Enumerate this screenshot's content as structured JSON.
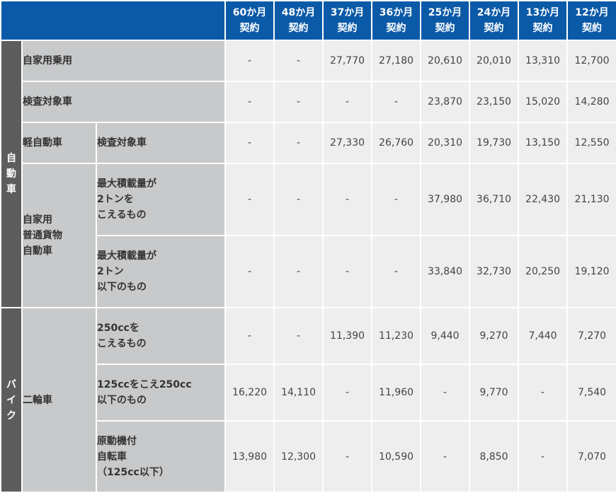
{
  "header": {
    "columns": [
      [
        "60か月",
        "契約"
      ],
      [
        "48か月",
        "契約"
      ],
      [
        "37か月",
        "契約"
      ],
      [
        "36か月",
        "契約"
      ],
      [
        "25か月",
        "契約"
      ],
      [
        "24か月",
        "契約"
      ],
      [
        "13か月",
        "契約"
      ],
      [
        "12か月",
        "契約"
      ]
    ]
  },
  "groups": {
    "car": "自動車",
    "bike": "バイク"
  },
  "rows": [
    {
      "label": [
        "自家用乗用"
      ],
      "values": [
        "-",
        "-",
        "27,770",
        "27,180",
        "20,610",
        "20,010",
        "13,310",
        "12,700"
      ]
    },
    {
      "label": [
        "検査対象車"
      ],
      "values": [
        "-",
        "-",
        "-",
        "-",
        "23,870",
        "23,150",
        "15,020",
        "14,280"
      ]
    },
    {
      "category": [
        "軽自動車"
      ],
      "label": [
        "検査対象車"
      ],
      "values": [
        "-",
        "-",
        "27,330",
        "26,760",
        "20,310",
        "19,730",
        "13,150",
        "12,550"
      ]
    },
    {
      "category": [
        "自家用",
        "普通貨物",
        "自動車"
      ],
      "label": [
        "最大積載量が",
        "2トンを",
        "こえるもの"
      ],
      "values": [
        "-",
        "-",
        "-",
        "-",
        "37,980",
        "36,710",
        "22,430",
        "21,130"
      ]
    },
    {
      "label": [
        "最大積載量が",
        "2トン",
        "以下のもの"
      ],
      "values": [
        "-",
        "-",
        "-",
        "-",
        "33,840",
        "32,730",
        "20,250",
        "19,120"
      ]
    },
    {
      "category": [
        "二輪車"
      ],
      "label": [
        "250ccを",
        "こえるもの"
      ],
      "values": [
        "-",
        "-",
        "11,390",
        "11,230",
        "9,440",
        "9,270",
        "7,440",
        "7,270"
      ]
    },
    {
      "label": [
        "125ccをこえ250cc",
        "以下のもの"
      ],
      "values": [
        "16,220",
        "14,110",
        "-",
        "11,960",
        "-",
        "9,770",
        "-",
        "7,540"
      ]
    },
    {
      "label": [
        "原動機付",
        "自転車",
        "（125cc以下）"
      ],
      "values": [
        "13,980",
        "12,300",
        "-",
        "10,590",
        "-",
        "8,850",
        "-",
        "7,070"
      ]
    }
  ]
}
